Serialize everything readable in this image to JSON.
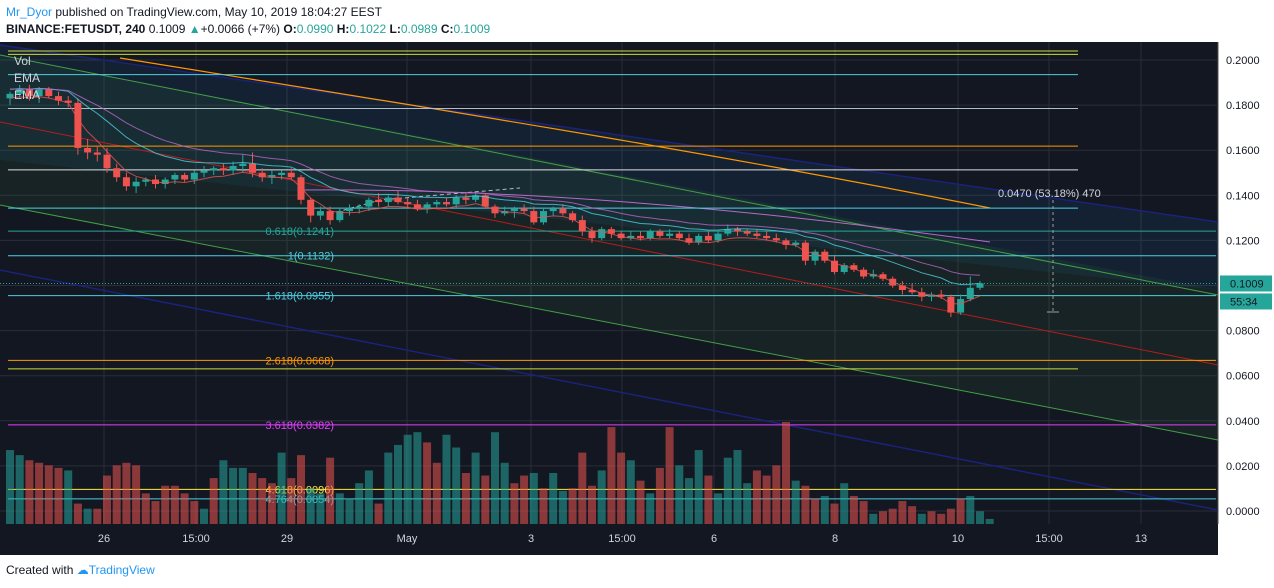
{
  "header": {
    "author": "Mr_Dyor",
    "published": "published on TradingView.com, May 10, 2019 18:04:27 EEST",
    "symbol": "BINANCE:FETUSDT, 240",
    "last": "0.1009",
    "change": "+0.0066 (+7%)",
    "o_label": "O:",
    "o": "0.0990",
    "h_label": "H:",
    "h": "0.1022",
    "l_label": "L:",
    "l": "0.0989",
    "c_label": "C:",
    "c": "0.1009"
  },
  "indicators": [
    "Vol",
    "EMA",
    "EMA"
  ],
  "footer": {
    "created_with": "Created with",
    "brand": "TradingView"
  },
  "colors": {
    "bg": "#131722",
    "up": "#26a69a",
    "down": "#ef5350",
    "vol_up": "#26a69a",
    "vol_down": "#ef5350"
  },
  "chart_data": {
    "type": "candlestick",
    "x_ticks": [
      "26",
      "15:00",
      "29",
      "May",
      "3",
      "15:00",
      "6",
      "8",
      "10",
      "15:00",
      "13"
    ],
    "y_ticks": [
      "0.2000",
      "0.1800",
      "0.1600",
      "0.1400",
      "0.1200",
      "0.1000",
      "0.0800",
      "0.0600",
      "0.0400",
      "0.0200",
      "0.0000"
    ],
    "ylim": [
      0.0,
      0.2
    ],
    "last_price_label": "0.1009",
    "countdown_label": "55:34",
    "measure_label": "0.0470 (53.18%) 470",
    "horizontal_levels": [
      {
        "price": 0.204,
        "color": "#cddc39"
      },
      {
        "price": 0.2025,
        "color": "#cddc39"
      },
      {
        "price": 0.1935,
        "color": "#4dd0e1"
      },
      {
        "price": 0.1785,
        "color": "#b0bec5"
      },
      {
        "price": 0.1618,
        "color": "#ff9800"
      },
      {
        "price": 0.1513,
        "color": "#e0e0e0"
      },
      {
        "price": 0.1343,
        "color": "#4dd0e1"
      },
      {
        "price": 0.063,
        "color": "#cddc39"
      }
    ],
    "fib_levels": [
      {
        "label": "0.618(0.1241)",
        "price": 0.1241,
        "color": "#26a69a"
      },
      {
        "label": "1(0.1132)",
        "price": 0.1132,
        "color": "#4dd0e1"
      },
      {
        "label": "1.618(0.0955)",
        "price": 0.0955,
        "color": "#4dd0e1"
      },
      {
        "label": "2.618(0.0668)",
        "price": 0.0668,
        "color": "#ff9800"
      },
      {
        "label": "3.618(0.0382)",
        "price": 0.0382,
        "color": "#e040fb"
      },
      {
        "label": "4.618(0.0096)",
        "price": 0.0096,
        "color": "#ffeb3b"
      },
      {
        "label": "4.764(0.0054)",
        "price": 0.0054,
        "color": "#4dd0e1"
      }
    ],
    "candles": [
      {
        "o": 0.183,
        "h": 0.186,
        "l": 0.18,
        "c": 0.185
      },
      {
        "o": 0.185,
        "h": 0.189,
        "l": 0.183,
        "c": 0.187
      },
      {
        "o": 0.187,
        "h": 0.189,
        "l": 0.182,
        "c": 0.184
      },
      {
        "o": 0.184,
        "h": 0.188,
        "l": 0.181,
        "c": 0.187
      },
      {
        "o": 0.187,
        "h": 0.188,
        "l": 0.183,
        "c": 0.184
      },
      {
        "o": 0.184,
        "h": 0.186,
        "l": 0.18,
        "c": 0.182
      },
      {
        "o": 0.182,
        "h": 0.184,
        "l": 0.179,
        "c": 0.181
      },
      {
        "o": 0.181,
        "h": 0.183,
        "l": 0.158,
        "c": 0.161
      },
      {
        "o": 0.161,
        "h": 0.165,
        "l": 0.156,
        "c": 0.159
      },
      {
        "o": 0.159,
        "h": 0.162,
        "l": 0.155,
        "c": 0.158
      },
      {
        "o": 0.158,
        "h": 0.161,
        "l": 0.15,
        "c": 0.152
      },
      {
        "o": 0.152,
        "h": 0.154,
        "l": 0.146,
        "c": 0.148
      },
      {
        "o": 0.148,
        "h": 0.15,
        "l": 0.142,
        "c": 0.144
      },
      {
        "o": 0.144,
        "h": 0.148,
        "l": 0.141,
        "c": 0.146
      },
      {
        "o": 0.146,
        "h": 0.148,
        "l": 0.144,
        "c": 0.147
      },
      {
        "o": 0.147,
        "h": 0.149,
        "l": 0.143,
        "c": 0.145
      },
      {
        "o": 0.145,
        "h": 0.148,
        "l": 0.143,
        "c": 0.147
      },
      {
        "o": 0.147,
        "h": 0.15,
        "l": 0.145,
        "c": 0.149
      },
      {
        "o": 0.149,
        "h": 0.15,
        "l": 0.146,
        "c": 0.147
      },
      {
        "o": 0.147,
        "h": 0.151,
        "l": 0.145,
        "c": 0.15
      },
      {
        "o": 0.15,
        "h": 0.153,
        "l": 0.148,
        "c": 0.151
      },
      {
        "o": 0.151,
        "h": 0.153,
        "l": 0.149,
        "c": 0.152
      },
      {
        "o": 0.152,
        "h": 0.154,
        "l": 0.149,
        "c": 0.151
      },
      {
        "o": 0.151,
        "h": 0.155,
        "l": 0.149,
        "c": 0.153
      },
      {
        "o": 0.153,
        "h": 0.158,
        "l": 0.15,
        "c": 0.154
      },
      {
        "o": 0.154,
        "h": 0.159,
        "l": 0.148,
        "c": 0.15
      },
      {
        "o": 0.15,
        "h": 0.152,
        "l": 0.146,
        "c": 0.148
      },
      {
        "o": 0.148,
        "h": 0.151,
        "l": 0.145,
        "c": 0.149
      },
      {
        "o": 0.149,
        "h": 0.151,
        "l": 0.147,
        "c": 0.15
      },
      {
        "o": 0.15,
        "h": 0.152,
        "l": 0.147,
        "c": 0.148
      },
      {
        "o": 0.148,
        "h": 0.149,
        "l": 0.136,
        "c": 0.138
      },
      {
        "o": 0.138,
        "h": 0.139,
        "l": 0.128,
        "c": 0.131
      },
      {
        "o": 0.131,
        "h": 0.135,
        "l": 0.129,
        "c": 0.133
      },
      {
        "o": 0.133,
        "h": 0.135,
        "l": 0.127,
        "c": 0.129
      },
      {
        "o": 0.129,
        "h": 0.134,
        "l": 0.128,
        "c": 0.133
      },
      {
        "o": 0.133,
        "h": 0.136,
        "l": 0.131,
        "c": 0.134
      },
      {
        "o": 0.134,
        "h": 0.136,
        "l": 0.132,
        "c": 0.135
      },
      {
        "o": 0.135,
        "h": 0.139,
        "l": 0.133,
        "c": 0.138
      },
      {
        "o": 0.138,
        "h": 0.141,
        "l": 0.135,
        "c": 0.137
      },
      {
        "o": 0.137,
        "h": 0.14,
        "l": 0.135,
        "c": 0.139
      },
      {
        "o": 0.139,
        "h": 0.142,
        "l": 0.136,
        "c": 0.137
      },
      {
        "o": 0.137,
        "h": 0.139,
        "l": 0.134,
        "c": 0.136
      },
      {
        "o": 0.136,
        "h": 0.138,
        "l": 0.133,
        "c": 0.134
      },
      {
        "o": 0.134,
        "h": 0.137,
        "l": 0.132,
        "c": 0.136
      },
      {
        "o": 0.136,
        "h": 0.138,
        "l": 0.134,
        "c": 0.137
      },
      {
        "o": 0.137,
        "h": 0.139,
        "l": 0.135,
        "c": 0.136
      },
      {
        "o": 0.136,
        "h": 0.14,
        "l": 0.134,
        "c": 0.139
      },
      {
        "o": 0.139,
        "h": 0.141,
        "l": 0.136,
        "c": 0.138
      },
      {
        "o": 0.138,
        "h": 0.141,
        "l": 0.137,
        "c": 0.14
      },
      {
        "o": 0.14,
        "h": 0.141,
        "l": 0.134,
        "c": 0.135
      },
      {
        "o": 0.135,
        "h": 0.136,
        "l": 0.13,
        "c": 0.132
      },
      {
        "o": 0.132,
        "h": 0.135,
        "l": 0.131,
        "c": 0.133
      },
      {
        "o": 0.133,
        "h": 0.135,
        "l": 0.13,
        "c": 0.134
      },
      {
        "o": 0.134,
        "h": 0.136,
        "l": 0.132,
        "c": 0.133
      },
      {
        "o": 0.133,
        "h": 0.135,
        "l": 0.127,
        "c": 0.128
      },
      {
        "o": 0.128,
        "h": 0.134,
        "l": 0.127,
        "c": 0.133
      },
      {
        "o": 0.133,
        "h": 0.135,
        "l": 0.131,
        "c": 0.134
      },
      {
        "o": 0.134,
        "h": 0.136,
        "l": 0.131,
        "c": 0.132
      },
      {
        "o": 0.132,
        "h": 0.133,
        "l": 0.128,
        "c": 0.129
      },
      {
        "o": 0.129,
        "h": 0.131,
        "l": 0.122,
        "c": 0.124
      },
      {
        "o": 0.124,
        "h": 0.126,
        "l": 0.119,
        "c": 0.121
      },
      {
        "o": 0.121,
        "h": 0.126,
        "l": 0.12,
        "c": 0.125
      },
      {
        "o": 0.125,
        "h": 0.126,
        "l": 0.121,
        "c": 0.123
      },
      {
        "o": 0.123,
        "h": 0.124,
        "l": 0.12,
        "c": 0.121
      },
      {
        "o": 0.121,
        "h": 0.124,
        "l": 0.12,
        "c": 0.122
      },
      {
        "o": 0.122,
        "h": 0.124,
        "l": 0.12,
        "c": 0.121
      },
      {
        "o": 0.121,
        "h": 0.125,
        "l": 0.12,
        "c": 0.124
      },
      {
        "o": 0.124,
        "h": 0.125,
        "l": 0.121,
        "c": 0.122
      },
      {
        "o": 0.122,
        "h": 0.125,
        "l": 0.121,
        "c": 0.123
      },
      {
        "o": 0.123,
        "h": 0.124,
        "l": 0.12,
        "c": 0.121
      },
      {
        "o": 0.121,
        "h": 0.123,
        "l": 0.118,
        "c": 0.119
      },
      {
        "o": 0.119,
        "h": 0.123,
        "l": 0.118,
        "c": 0.122
      },
      {
        "o": 0.122,
        "h": 0.124,
        "l": 0.119,
        "c": 0.12
      },
      {
        "o": 0.12,
        "h": 0.124,
        "l": 0.119,
        "c": 0.123
      },
      {
        "o": 0.123,
        "h": 0.127,
        "l": 0.122,
        "c": 0.125
      },
      {
        "o": 0.125,
        "h": 0.126,
        "l": 0.122,
        "c": 0.124
      },
      {
        "o": 0.124,
        "h": 0.125,
        "l": 0.122,
        "c": 0.123
      },
      {
        "o": 0.123,
        "h": 0.125,
        "l": 0.121,
        "c": 0.122
      },
      {
        "o": 0.122,
        "h": 0.124,
        "l": 0.12,
        "c": 0.121
      },
      {
        "o": 0.121,
        "h": 0.123,
        "l": 0.119,
        "c": 0.12
      },
      {
        "o": 0.12,
        "h": 0.121,
        "l": 0.116,
        "c": 0.118
      },
      {
        "o": 0.118,
        "h": 0.12,
        "l": 0.117,
        "c": 0.119
      },
      {
        "o": 0.119,
        "h": 0.12,
        "l": 0.109,
        "c": 0.111
      },
      {
        "o": 0.111,
        "h": 0.116,
        "l": 0.109,
        "c": 0.115
      },
      {
        "o": 0.115,
        "h": 0.116,
        "l": 0.11,
        "c": 0.111
      },
      {
        "o": 0.111,
        "h": 0.113,
        "l": 0.105,
        "c": 0.106
      },
      {
        "o": 0.106,
        "h": 0.11,
        "l": 0.105,
        "c": 0.109
      },
      {
        "o": 0.109,
        "h": 0.11,
        "l": 0.106,
        "c": 0.107
      },
      {
        "o": 0.107,
        "h": 0.108,
        "l": 0.103,
        "c": 0.104
      },
      {
        "o": 0.104,
        "h": 0.107,
        "l": 0.103,
        "c": 0.105
      },
      {
        "o": 0.105,
        "h": 0.106,
        "l": 0.102,
        "c": 0.103
      },
      {
        "o": 0.103,
        "h": 0.104,
        "l": 0.099,
        "c": 0.1
      },
      {
        "o": 0.1,
        "h": 0.102,
        "l": 0.096,
        "c": 0.098
      },
      {
        "o": 0.098,
        "h": 0.101,
        "l": 0.096,
        "c": 0.097
      },
      {
        "o": 0.097,
        "h": 0.099,
        "l": 0.093,
        "c": 0.095
      },
      {
        "o": 0.095,
        "h": 0.097,
        "l": 0.093,
        "c": 0.096
      },
      {
        "o": 0.096,
        "h": 0.098,
        "l": 0.094,
        "c": 0.095
      },
      {
        "o": 0.095,
        "h": 0.096,
        "l": 0.086,
        "c": 0.088
      },
      {
        "o": 0.088,
        "h": 0.096,
        "l": 0.087,
        "c": 0.094
      },
      {
        "o": 0.094,
        "h": 0.104,
        "l": 0.093,
        "c": 0.099
      },
      {
        "o": 0.099,
        "h": 0.102,
        "l": 0.098,
        "c": 0.101
      }
    ],
    "volume_ylim": [
      0,
      0.05
    ],
    "volumes": [
      0.029,
      0.027,
      0.025,
      0.024,
      0.023,
      0.022,
      0.021,
      0.008,
      0.006,
      0.006,
      0.019,
      0.023,
      0.024,
      0.023,
      0.012,
      0.009,
      0.015,
      0.015,
      0.012,
      0.009,
      0.006,
      0.018,
      0.025,
      0.022,
      0.022,
      0.02,
      0.018,
      0.016,
      0.028,
      0.018,
      0.027,
      0.014,
      0.012,
      0.026,
      0.012,
      0.01,
      0.016,
      0.021,
      0.008,
      0.028,
      0.031,
      0.035,
      0.036,
      0.032,
      0.024,
      0.035,
      0.03,
      0.02,
      0.028,
      0.019,
      0.036,
      0.024,
      0.016,
      0.019,
      0.02,
      0.014,
      0.02,
      0.013,
      0.014,
      0.028,
      0.015,
      0.021,
      0.038,
      0.028,
      0.025,
      0.017,
      0.012,
      0.022,
      0.038,
      0.023,
      0.018,
      0.029,
      0.019,
      0.012,
      0.026,
      0.029,
      0.016,
      0.021,
      0.019,
      0.023,
      0.04,
      0.017,
      0.015,
      0.01,
      0.011,
      0.008,
      0.016,
      0.011,
      0.009,
      0.004,
      0.005,
      0.006,
      0.009,
      0.007,
      0.004,
      0.005,
      0.004,
      0.006,
      0.01,
      0.011,
      0.005,
      0.002
    ],
    "volume_up": [
      1,
      1,
      0,
      0,
      0,
      0,
      1,
      0,
      1,
      0,
      0,
      0,
      0,
      0,
      0,
      0,
      0,
      0,
      0,
      0,
      1,
      0,
      1,
      1,
      1,
      0,
      0,
      0,
      1,
      0,
      0,
      1,
      1,
      0,
      1,
      1,
      1,
      1,
      0,
      1,
      1,
      1,
      1,
      0,
      0,
      1,
      1,
      0,
      1,
      0,
      1,
      1,
      0,
      0,
      1,
      0,
      1,
      1,
      0,
      0,
      0,
      1,
      0,
      0,
      1,
      0,
      1,
      0,
      0,
      1,
      1,
      1,
      0,
      1,
      1,
      1,
      1,
      0,
      0,
      0,
      0,
      1,
      0,
      0,
      1,
      0,
      1,
      0,
      0,
      1,
      0,
      0,
      0,
      0,
      1,
      0,
      0,
      0,
      0,
      1,
      1,
      1
    ]
  }
}
